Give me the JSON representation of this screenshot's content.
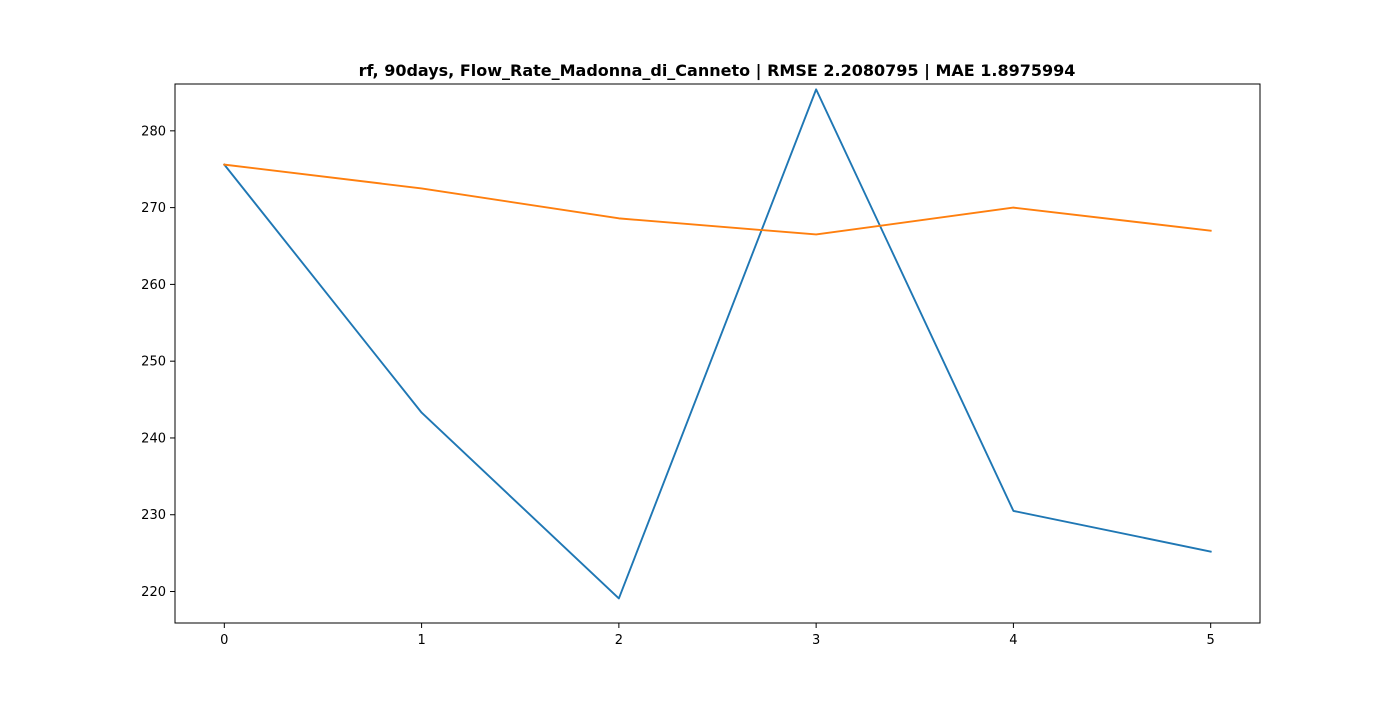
{
  "chart_data": {
    "type": "line",
    "title": "rf, 90days, Flow_Rate_Madonna_di_Canneto | RMSE 2.2080795 | MAE 1.8975994",
    "xlabel": "",
    "ylabel": "",
    "x": [
      0,
      1,
      2,
      3,
      4,
      5
    ],
    "xticks": [
      "0",
      "1",
      "2",
      "3",
      "4",
      "5"
    ],
    "yticks": [
      "220",
      "230",
      "240",
      "250",
      "260",
      "270",
      "280"
    ],
    "xlim": [
      -0.25,
      5.25
    ],
    "ylim": [
      215.9,
      286.1
    ],
    "grid": false,
    "legend": "none",
    "series": [
      {
        "color": "#1f77b4",
        "values": [
          275.6,
          243.3,
          219.1,
          285.4,
          230.5,
          225.2
        ]
      },
      {
        "color": "#ff7f0e",
        "values": [
          275.6,
          272.5,
          268.6,
          266.5,
          270.0,
          267.0
        ]
      }
    ]
  }
}
